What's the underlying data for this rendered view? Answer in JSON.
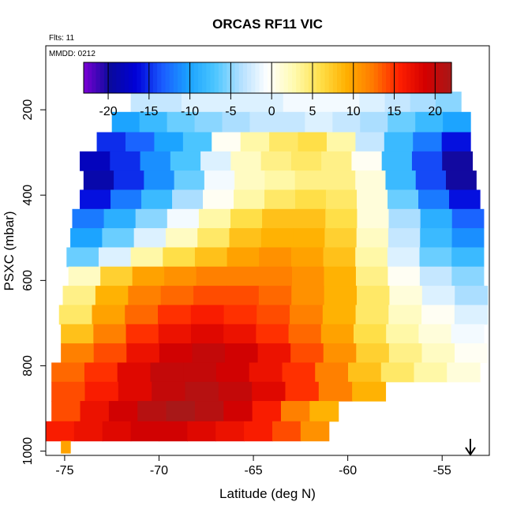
{
  "chart_data": {
    "type": "heatmap",
    "title": "ORCAS RF11 VIC",
    "flights_label": "Flts: 11",
    "date_label": "MMDD: 0212",
    "xlabel": "Latitude (deg N)",
    "ylabel": "PSXC (mbar)",
    "xlim": [
      -76,
      -52.5
    ],
    "ylim": [
      1010,
      50
    ],
    "x_ticks": [
      -75,
      -70,
      -65,
      -60,
      -55
    ],
    "y_ticks": [
      200,
      400,
      600,
      800,
      1000
    ],
    "colorbar": {
      "min": -23,
      "max": 22,
      "ticks": [
        -20,
        -15,
        -10,
        -5,
        0,
        5,
        10,
        15,
        20
      ],
      "colors": [
        "#7b00d4",
        "#0a0a9c",
        "#0000d8",
        "#1a5cff",
        "#1aa2ff",
        "#4cc6ff",
        "#b4e0ff",
        "#ffffff",
        "#fffab0",
        "#ffe04a",
        "#ffb000",
        "#ff7a00",
        "#ff2000",
        "#d40000",
        "#a81818"
      ]
    },
    "layers": [
      {
        "p": 180,
        "lat_min": -71.5,
        "lat_max": -54.0,
        "values": [
          -3,
          -3,
          -2,
          -2,
          -2,
          -2,
          -1,
          -1,
          -1,
          -2,
          -3,
          -4,
          -5
        ]
      },
      {
        "p": 230,
        "lat_min": -72.5,
        "lat_max": -53.5,
        "values": [
          -10,
          -8,
          -6,
          -5,
          -4,
          -3,
          -3,
          -2,
          -3,
          -4,
          -6,
          -8,
          -10
        ]
      },
      {
        "p": 275,
        "lat_min": -73.3,
        "lat_max": -53.5,
        "values": [
          -15,
          -13,
          -10,
          -7,
          0,
          3,
          5,
          6,
          3,
          -3,
          -8,
          -12,
          -16
        ]
      },
      {
        "p": 320,
        "lat_min": -74.2,
        "lat_max": -53.4,
        "values": [
          -18,
          -15,
          -11,
          -7,
          -2,
          2,
          4,
          5,
          4,
          0,
          -8,
          -14,
          -20
        ]
      },
      {
        "p": 365,
        "lat_min": -74.0,
        "lat_max": -53.2,
        "values": [
          -19,
          -15,
          -11,
          -6,
          -1,
          2,
          3,
          4,
          4,
          1,
          -8,
          -14,
          -20
        ]
      },
      {
        "p": 410,
        "lat_min": -74.2,
        "lat_max": -53.0,
        "values": [
          -16,
          -12,
          -8,
          -4,
          0,
          3,
          5,
          6,
          5,
          1,
          -6,
          -12,
          -16
        ]
      },
      {
        "p": 455,
        "lat_min": -74.6,
        "lat_max": -52.8,
        "values": [
          -12,
          -9,
          -5,
          -1,
          3,
          6,
          8,
          8,
          6,
          1,
          -4,
          -9,
          -13
        ]
      },
      {
        "p": 500,
        "lat_min": -74.7,
        "lat_max": -52.8,
        "values": [
          -10,
          -6,
          -2,
          2,
          5,
          8,
          9,
          9,
          7,
          2,
          -3,
          -8,
          -11
        ]
      },
      {
        "p": 545,
        "lat_min": -74.9,
        "lat_max": -52.8,
        "values": [
          -6,
          -2,
          3,
          6,
          8,
          10,
          11,
          10,
          8,
          3,
          -2,
          -6,
          -8
        ]
      },
      {
        "p": 590,
        "lat_min": -74.8,
        "lat_max": -52.8,
        "values": [
          2,
          7,
          10,
          11,
          12,
          12,
          12,
          11,
          9,
          4,
          0,
          -3,
          -5
        ]
      },
      {
        "p": 635,
        "lat_min": -75.1,
        "lat_max": -52.6,
        "values": [
          4,
          9,
          12,
          13,
          14,
          14,
          13,
          11,
          9,
          5,
          1,
          -2,
          -4
        ]
      },
      {
        "p": 680,
        "lat_min": -75.3,
        "lat_max": -52.6,
        "values": [
          5,
          10,
          13,
          15,
          16,
          15,
          14,
          12,
          9,
          5,
          2,
          0,
          -2
        ]
      },
      {
        "p": 725,
        "lat_min": -75.2,
        "lat_max": -52.8,
        "values": [
          8,
          12,
          15,
          17,
          18,
          17,
          15,
          13,
          10,
          6,
          3,
          1,
          -1
        ]
      },
      {
        "p": 770,
        "lat_min": -75.2,
        "lat_max": -52.6,
        "values": [
          12,
          14,
          17,
          19,
          20,
          19,
          17,
          14,
          11,
          7,
          4,
          2,
          0
        ]
      },
      {
        "p": 815,
        "lat_min": -75.7,
        "lat_max": -53.0,
        "values": [
          13,
          15,
          18,
          20,
          20,
          19,
          17,
          15,
          12,
          8,
          5,
          3,
          1
        ]
      },
      {
        "p": 860,
        "lat_min": -75.7,
        "lat_max": -58.0,
        "values": [
          14,
          16,
          18,
          20,
          21,
          20,
          18,
          15,
          12,
          9
        ]
      },
      {
        "p": 905,
        "lat_min": -75.7,
        "lat_max": -60.5,
        "values": [
          14,
          17,
          19,
          21,
          22,
          21,
          19,
          16,
          12,
          9
        ]
      },
      {
        "p": 955,
        "lat_min": -76.0,
        "lat_max": -61.0,
        "values": [
          16,
          17,
          18,
          19,
          19,
          18,
          17,
          16,
          14,
          11
        ]
      },
      {
        "p": 997,
        "lat_min": -75.2,
        "lat_max": -74.7,
        "values": [
          10
        ]
      }
    ]
  }
}
